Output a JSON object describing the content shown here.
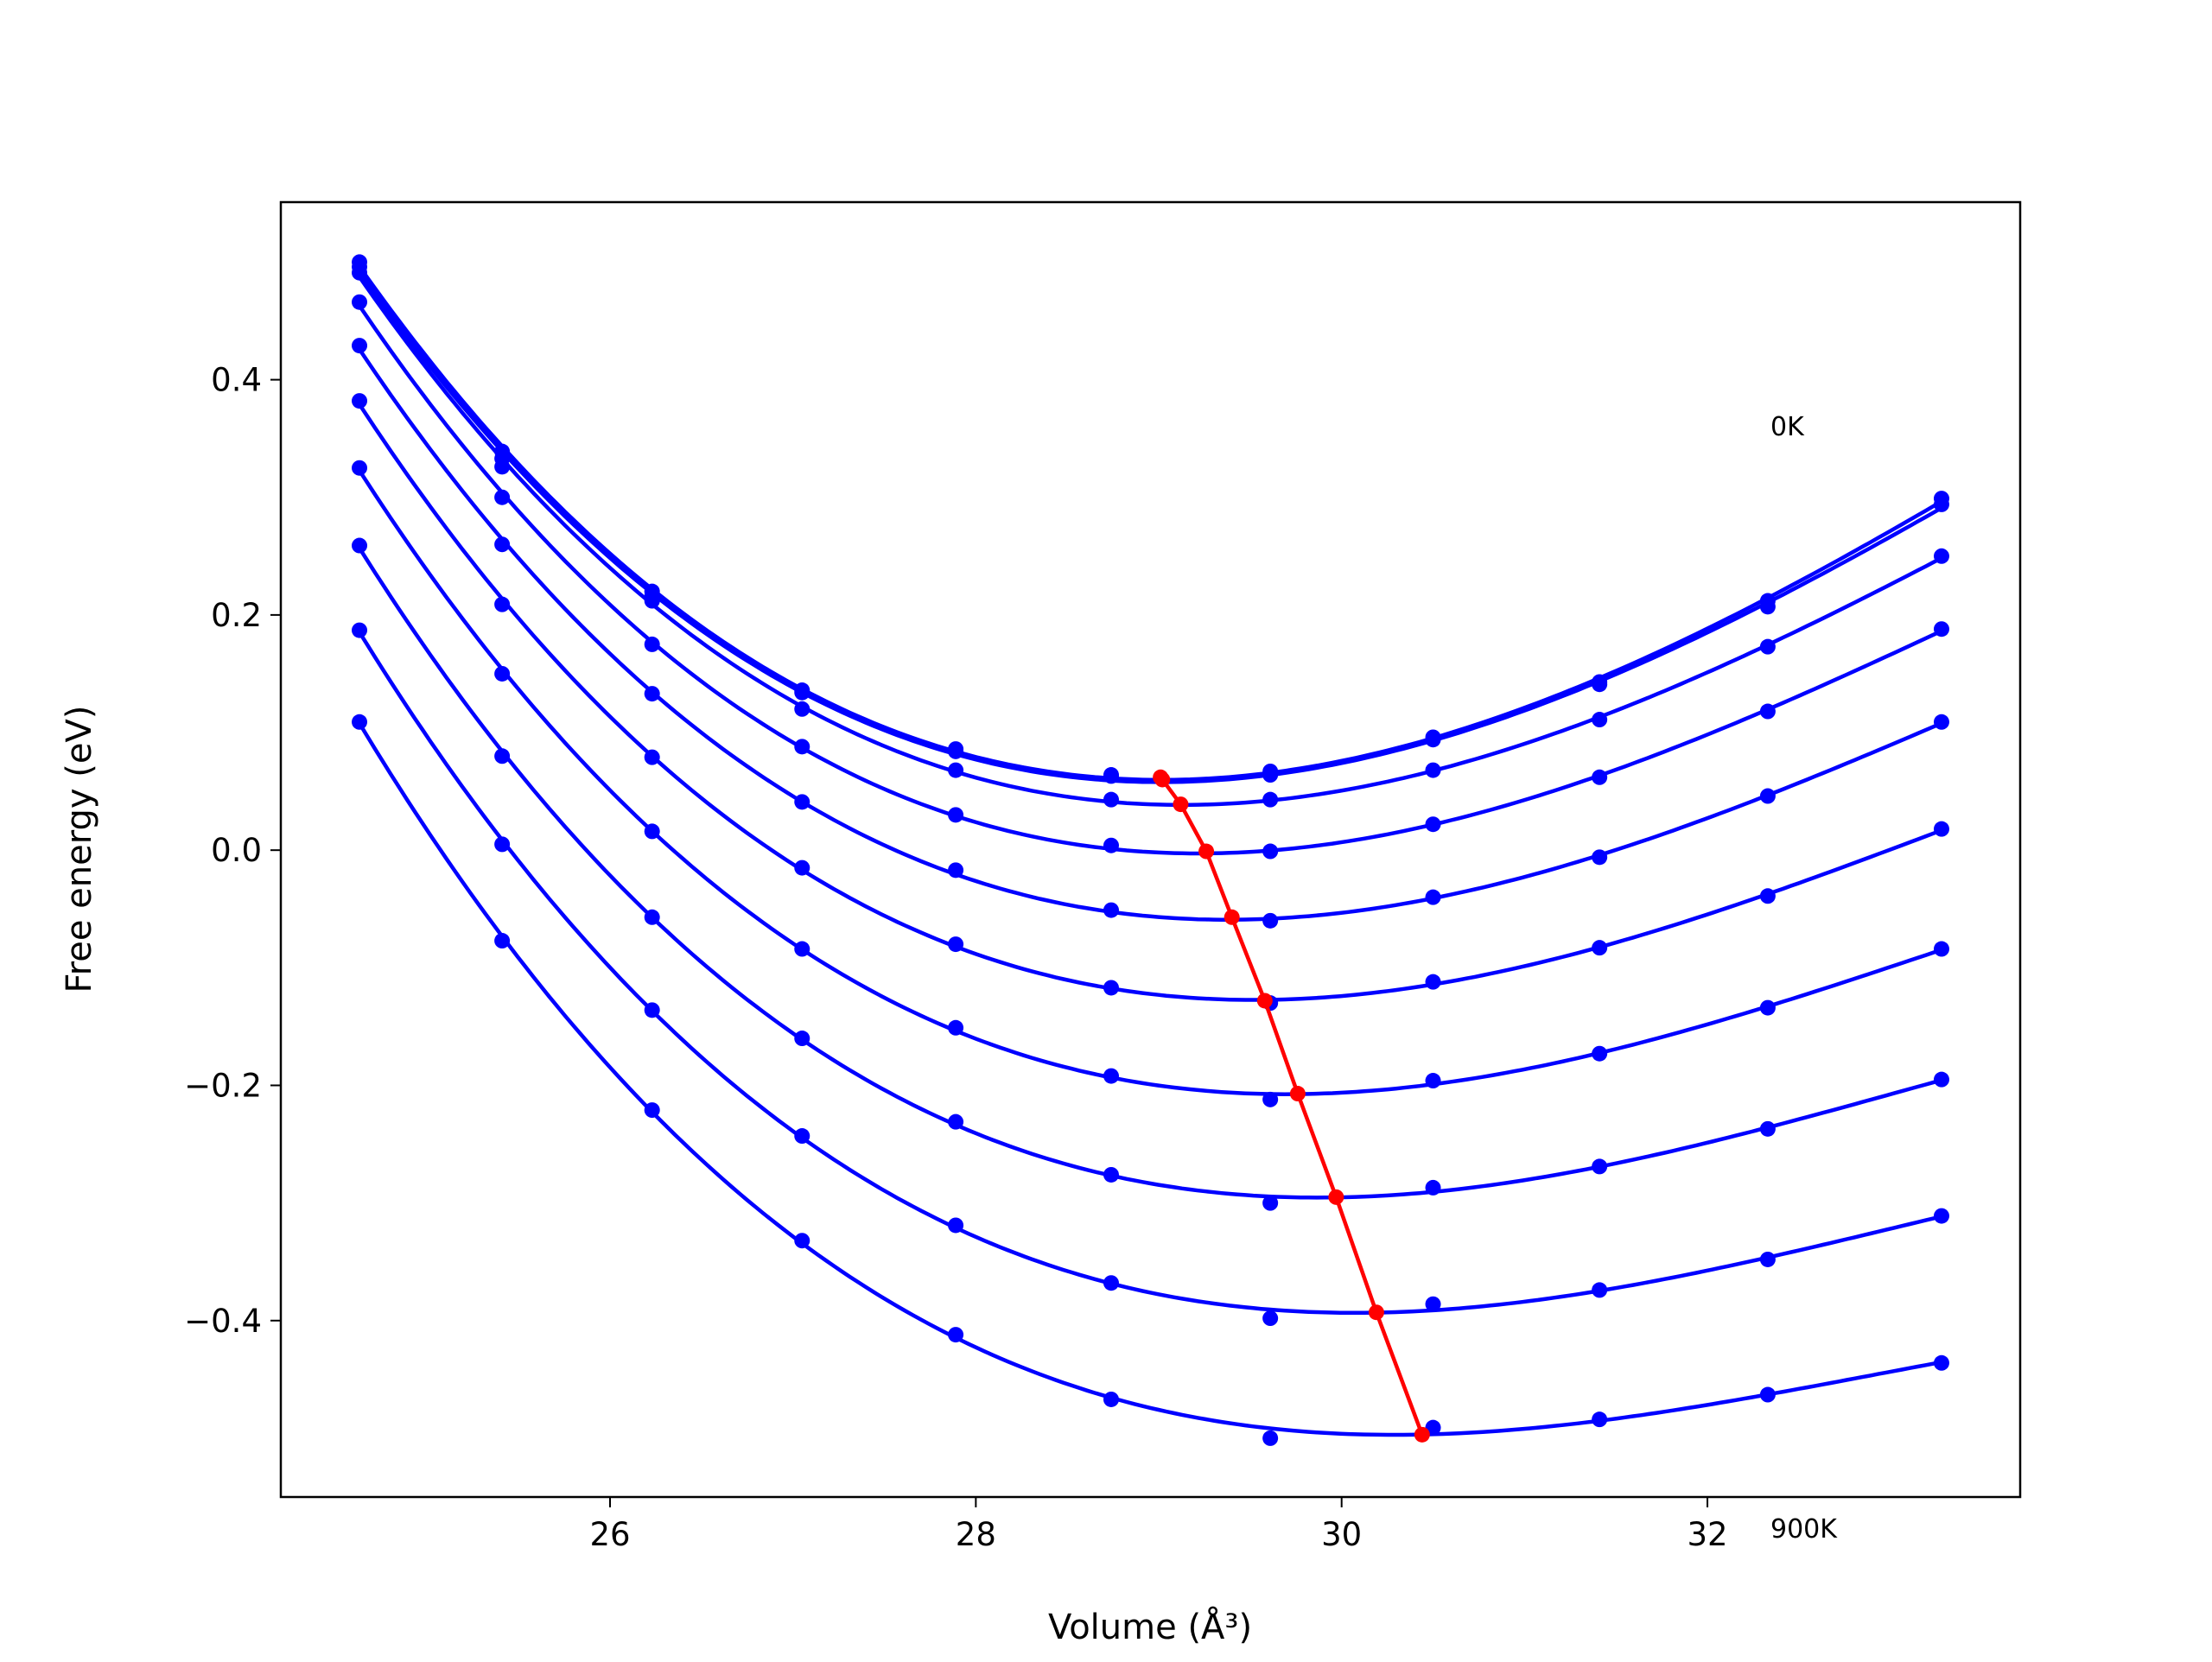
{
  "chart_data": {
    "type": "scatter",
    "xlabel": "Volume (Å³)",
    "ylabel": "Free energy (eV)",
    "x": [
      24.63,
      25.41,
      26.23,
      27.05,
      27.89,
      28.74,
      29.61,
      30.5,
      31.41,
      32.33,
      33.28
    ],
    "series": [
      {
        "color": "#0000ff",
        "values": [
          0.5,
          0.339,
          0.22,
          0.136,
          0.086,
          0.064,
          0.067,
          0.096,
          0.143,
          0.212,
          0.299
        ]
      },
      {
        "color": "#0000ff",
        "values": [
          0.496,
          0.333,
          0.216,
          0.134,
          0.084,
          0.063,
          0.064,
          0.094,
          0.141,
          0.207,
          0.294
        ]
      },
      {
        "color": "#0000ff",
        "values": [
          0.491,
          0.326,
          0.212,
          0.12,
          0.068,
          0.043,
          0.043,
          0.068,
          0.111,
          0.173,
          0.25
        ]
      },
      {
        "color": "#0000ff",
        "values": [
          0.466,
          0.3,
          0.175,
          0.088,
          0.03,
          0.004,
          -0.001,
          0.022,
          0.062,
          0.118,
          0.188
        ]
      },
      {
        "color": "#0000ff",
        "values": [
          0.429,
          0.26,
          0.133,
          0.041,
          -0.017,
          -0.051,
          -0.06,
          -0.04,
          -0.006,
          0.046,
          0.109
        ]
      },
      {
        "color": "#0000ff",
        "values": [
          0.382,
          0.209,
          0.079,
          -0.015,
          -0.08,
          -0.117,
          -0.13,
          -0.112,
          -0.083,
          -0.039,
          0.018
        ]
      },
      {
        "color": "#0000ff",
        "values": [
          0.325,
          0.15,
          0.016,
          -0.084,
          -0.151,
          -0.192,
          -0.212,
          -0.196,
          -0.173,
          -0.134,
          -0.084
        ]
      },
      {
        "color": "#0000ff",
        "values": [
          0.259,
          0.08,
          -0.057,
          -0.16,
          -0.231,
          -0.276,
          -0.3,
          -0.287,
          -0.269,
          -0.237,
          -0.195
        ]
      },
      {
        "color": "#0000ff",
        "values": [
          0.187,
          0.005,
          -0.136,
          -0.243,
          -0.319,
          -0.368,
          -0.398,
          -0.386,
          -0.374,
          -0.348,
          -0.311
        ]
      },
      {
        "color": "#0000ff",
        "values": [
          0.109,
          -0.077,
          -0.221,
          -0.332,
          -0.412,
          -0.467,
          -0.5,
          -0.491,
          -0.484,
          -0.463,
          -0.436
        ]
      }
    ],
    "minima": {
      "color": "#ff0000",
      "x": [
        29.01,
        29.02,
        29.12,
        29.26,
        29.4,
        29.58,
        29.76,
        29.97,
        30.19,
        30.44
      ],
      "values": [
        0.062,
        0.06,
        0.039,
        -0.001,
        -0.057,
        -0.128,
        -0.207,
        -0.295,
        -0.393,
        -0.497
      ]
    },
    "annotations": [
      "0K",
      "900K"
    ],
    "xlim": [
      24.2,
      33.71
    ],
    "ylim": [
      -0.55,
      0.551
    ],
    "xticks": [
      26,
      28,
      30,
      32
    ],
    "yticks": [
      {
        "value": -0.4,
        "label": "−0.4"
      },
      {
        "value": -0.2,
        "label": "−0.2"
      },
      {
        "value": 0,
        "label": "0.0"
      },
      0.2,
      0.4
    ]
  }
}
